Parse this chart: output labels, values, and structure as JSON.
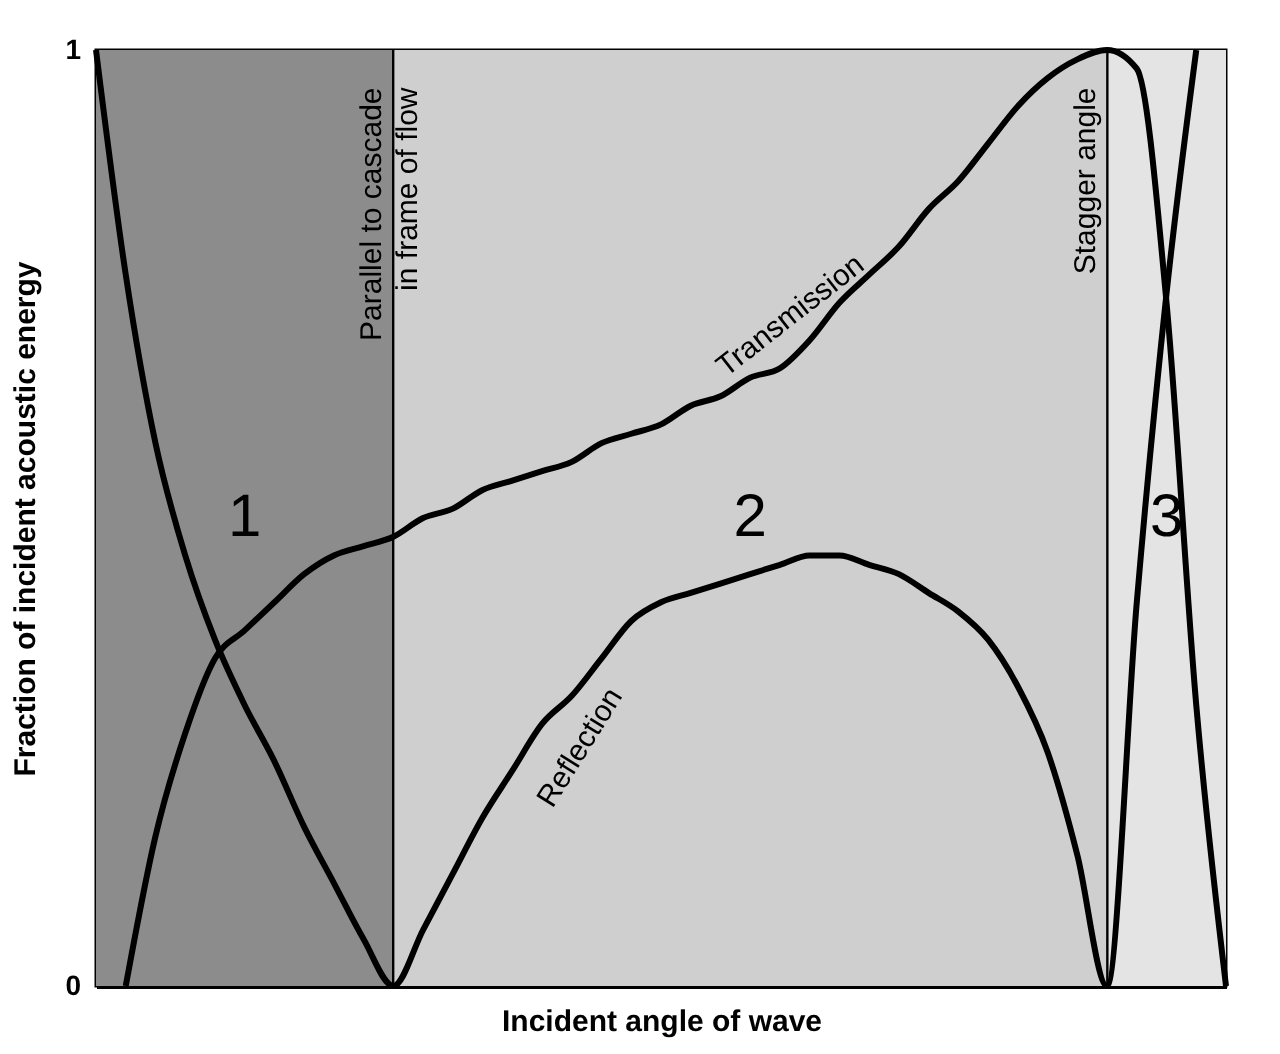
{
  "chart_data": {
    "type": "line",
    "xlabel": "Incident angle of wave",
    "ylabel": "Fraction of incident acoustic energy",
    "categories": [
      null,
      null,
      null,
      null,
      null,
      null,
      null,
      null,
      null,
      null,
      null,
      null,
      null,
      null,
      null,
      null,
      null,
      null,
      null,
      null,
      null,
      null,
      null,
      null,
      null,
      null,
      null,
      null,
      null,
      null,
      null,
      null,
      null,
      null,
      null,
      null,
      null,
      null,
      null
    ],
    "ylim": [
      0,
      1
    ],
    "yticks": [
      0,
      1
    ],
    "tick_labels": "y",
    "grid": false,
    "series": [
      {
        "name": "Reflection",
        "color": "#000000",
        "values": [
          1.0,
          0.76,
          0.58,
          0.46,
          0.37,
          0.3,
          0.24,
          0.17,
          0.11,
          0.05,
          0,
          0.06,
          0.12,
          0.18,
          0.23,
          0.28,
          0.31,
          0.35,
          0.39,
          0.41,
          0.42,
          0.43,
          0.44,
          0.45,
          0.46,
          0.46,
          0.45,
          0.44,
          0.42,
          0.4,
          0.37,
          0.32,
          0.25,
          0.14,
          0,
          0.41,
          0.74,
          1.0,
          null
        ]
      },
      {
        "name": "Transmission",
        "color": "#000000",
        "values": [
          null,
          0,
          0.16,
          0.27,
          0.35,
          0.38,
          0.41,
          0.44,
          0.46,
          0.47,
          0.48,
          0.5,
          0.51,
          0.53,
          0.54,
          0.55,
          0.56,
          0.58,
          0.59,
          0.6,
          0.62,
          0.63,
          0.65,
          0.66,
          0.69,
          0.73,
          0.76,
          0.79,
          0.83,
          0.86,
          0.9,
          0.94,
          0.97,
          0.99,
          1.0,
          0.98,
          0.73,
          0.3,
          0
        ]
      }
    ],
    "annotations": [
      "1",
      "2",
      "3",
      "Parallel to cascade in frame of flow",
      "Stagger angle"
    ]
  }
}
